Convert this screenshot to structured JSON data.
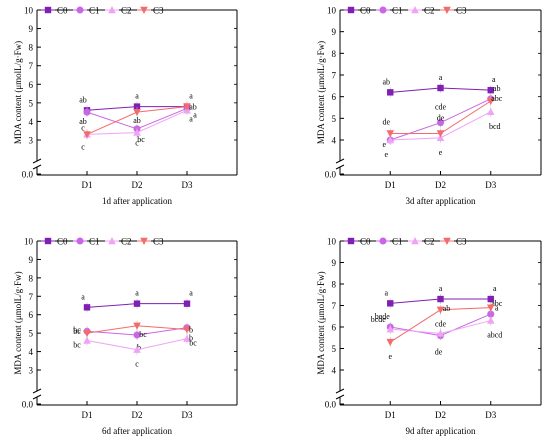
{
  "chart_data": [
    {
      "type": "line",
      "title": "",
      "xlabel": "1d after application",
      "ylabel": "MDA content (μmolL/g·Fw)",
      "categories": [
        "D1",
        "D2",
        "D3"
      ],
      "ylim": [
        0,
        10
      ],
      "yticks": [
        "0.0",
        "3",
        "4",
        "5",
        "6",
        "7",
        "8",
        "9",
        "10"
      ],
      "y_axis_break": true,
      "legend_position": "top-left",
      "series": [
        {
          "name": "C0",
          "values": [
            4.6,
            4.8,
            4.8
          ],
          "labels": [
            "ab",
            "a",
            "a"
          ]
        },
        {
          "name": "C1",
          "values": [
            4.5,
            3.6,
            4.7
          ],
          "labels": [
            "ab",
            "bc",
            "ab"
          ]
        },
        {
          "name": "C2",
          "values": [
            3.3,
            3.4,
            4.6
          ],
          "labels": [
            "c",
            "c",
            "a"
          ]
        },
        {
          "name": "C3",
          "values": [
            3.3,
            4.5,
            4.8
          ],
          "labels": [
            "c",
            "ab",
            "a"
          ]
        }
      ]
    },
    {
      "type": "line",
      "title": "",
      "xlabel": "3d after application",
      "ylabel": "MDA content (μmolL/g·Fw)",
      "categories": [
        "D1",
        "D2",
        "D3"
      ],
      "ylim": [
        0,
        10
      ],
      "yticks": [
        "0.0",
        "4",
        "5",
        "6",
        "7",
        "8",
        "9",
        "10"
      ],
      "y_axis_break": true,
      "legend_position": "top-left",
      "series": [
        {
          "name": "C0",
          "values": [
            6.2,
            6.4,
            6.3
          ],
          "labels": [
            "ab",
            "a",
            "a"
          ]
        },
        {
          "name": "C1",
          "values": [
            4.0,
            4.8,
            5.9
          ],
          "labels": [
            "e",
            "cde",
            "ab"
          ]
        },
        {
          "name": "C2",
          "values": [
            4.0,
            4.1,
            5.3
          ],
          "labels": [
            "e",
            "e",
            "bcd"
          ]
        },
        {
          "name": "C3",
          "values": [
            4.3,
            4.3,
            5.8
          ],
          "labels": [
            "de",
            "de",
            "abc"
          ]
        }
      ]
    },
    {
      "type": "line",
      "title": "",
      "xlabel": "6d after application",
      "ylabel": "MDA content (μmolL/g·Fw)",
      "categories": [
        "D1",
        "D2",
        "D3"
      ],
      "ylim": [
        0,
        10
      ],
      "yticks": [
        "0.0",
        "3",
        "4",
        "5",
        "6",
        "7",
        "8",
        "9",
        "10"
      ],
      "y_axis_break": true,
      "legend_position": "top-left",
      "series": [
        {
          "name": "C0",
          "values": [
            6.4,
            6.6,
            6.6
          ],
          "labels": [
            "a",
            "a",
            "a"
          ]
        },
        {
          "name": "C1",
          "values": [
            5.1,
            4.9,
            5.3
          ],
          "labels": [
            "bc",
            "b",
            "b"
          ]
        },
        {
          "name": "C2",
          "values": [
            4.6,
            4.1,
            4.7
          ],
          "labels": [
            "bc",
            "c",
            "bc"
          ]
        },
        {
          "name": "C3",
          "values": [
            5.0,
            5.4,
            5.2
          ],
          "labels": [
            "bc",
            "bc",
            "b"
          ]
        }
      ]
    },
    {
      "type": "line",
      "title": "",
      "xlabel": "9d after application",
      "ylabel": "MDA content (μmolL/g·Fw)",
      "categories": [
        "D1",
        "D2",
        "D3"
      ],
      "ylim": [
        0,
        10
      ],
      "yticks": [
        "0.0",
        "4",
        "5",
        "6",
        "7",
        "8",
        "9",
        "10"
      ],
      "y_axis_break": true,
      "legend_position": "top-left",
      "series": [
        {
          "name": "C0",
          "values": [
            7.1,
            7.3,
            7.3
          ],
          "labels": [
            "a",
            "a",
            "a"
          ]
        },
        {
          "name": "C1",
          "values": [
            6.0,
            5.6,
            6.6
          ],
          "labels": [
            "bcde",
            "de",
            "abc"
          ]
        },
        {
          "name": "C2",
          "values": [
            5.9,
            5.7,
            6.3
          ],
          "labels": [
            "bcde",
            "cde",
            "abcd"
          ]
        },
        {
          "name": "C3",
          "values": [
            5.3,
            6.8,
            6.9
          ],
          "labels": [
            "e",
            "ab",
            "a"
          ]
        }
      ]
    }
  ],
  "series_style": {
    "C0": {
      "color": "#7f1fb3",
      "marker": "square"
    },
    "C1": {
      "color": "#c966e6",
      "marker": "circle"
    },
    "C2": {
      "color": "#f0a3f5",
      "marker": "triangle-up"
    },
    "C3": {
      "color": "#f46b6b",
      "marker": "triangle-down"
    }
  }
}
